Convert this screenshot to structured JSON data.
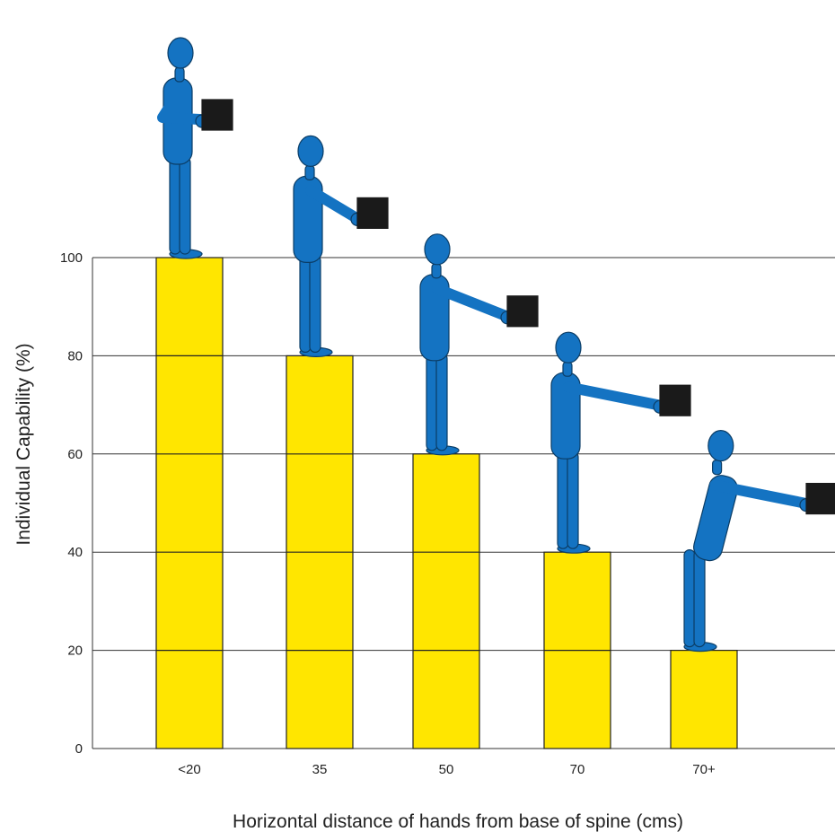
{
  "chart_data": {
    "type": "bar",
    "title": "",
    "xlabel": "Horizontal distance of hands from base of spine (cms)",
    "ylabel": "Individual Capability (%)",
    "categories": [
      "<20",
      "35",
      "50",
      "70",
      "70+"
    ],
    "values": [
      100,
      80,
      60,
      40,
      20
    ],
    "ylim": [
      0,
      100
    ],
    "yticks": [
      0,
      20,
      40,
      60,
      80,
      100
    ],
    "grid": true,
    "legend": "none",
    "colors": {
      "bar": "#ffe600",
      "bar_stroke": "#222222",
      "grid": "#333333",
      "figure": "#1473c2",
      "figure_stroke": "#0b3d66",
      "box": "#1a1a1a"
    },
    "figure_icon": "person-holding-box-icon"
  }
}
